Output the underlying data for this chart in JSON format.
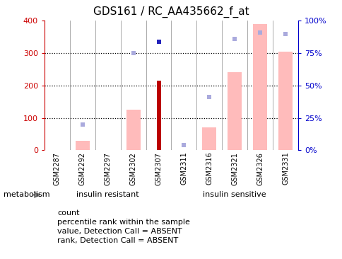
{
  "title": "GDS161 / RC_AA435662_f_at",
  "categories": [
    "GSM2287",
    "GSM2292",
    "GSM2297",
    "GSM2302",
    "GSM2307",
    "GSM2311",
    "GSM2316",
    "GSM2321",
    "GSM2326",
    "GSM2331"
  ],
  "bar_values": [
    null,
    30,
    null,
    125,
    215,
    null,
    70,
    240,
    390,
    305
  ],
  "bar_color_main": "#bb0000",
  "bar_color_absent": "#ffbbbb",
  "count_bar_index": 4,
  "rank_dots_pct": [
    null,
    20,
    null,
    75,
    84,
    4,
    41,
    86,
    91,
    90
  ],
  "rank_dot_color_blue": "#2222bb",
  "rank_dot_color_lightblue": "#aaaadd",
  "rank_dot_blue_index": 4,
  "ylim_left": [
    0,
    400
  ],
  "ylim_right": [
    0,
    100
  ],
  "yticks_left": [
    0,
    100,
    200,
    300,
    400
  ],
  "yticks_right": [
    0,
    25,
    50,
    75,
    100
  ],
  "ytick_labels_right": [
    "0%",
    "25%",
    "50%",
    "75%",
    "100%"
  ],
  "left_axis_color": "#cc0000",
  "right_axis_color": "#0000cc",
  "plot_bg_color": "#ffffff",
  "grid_color": "#000000",
  "group_resistant_color": "#aaffaa",
  "group_sensitive_color": "#22dd22",
  "sample_band_color": "#cccccc",
  "legend_items": [
    {
      "label": "count",
      "color": "#bb0000",
      "marker": "s"
    },
    {
      "label": "percentile rank within the sample",
      "color": "#2222bb",
      "marker": "s"
    },
    {
      "label": "value, Detection Call = ABSENT",
      "color": "#ffbbbb",
      "marker": "s"
    },
    {
      "label": "rank, Detection Call = ABSENT",
      "color": "#aaaadd",
      "marker": "s"
    }
  ],
  "metabolism_label": "metabolism",
  "n_resistant": 5,
  "n_sensitive": 5
}
